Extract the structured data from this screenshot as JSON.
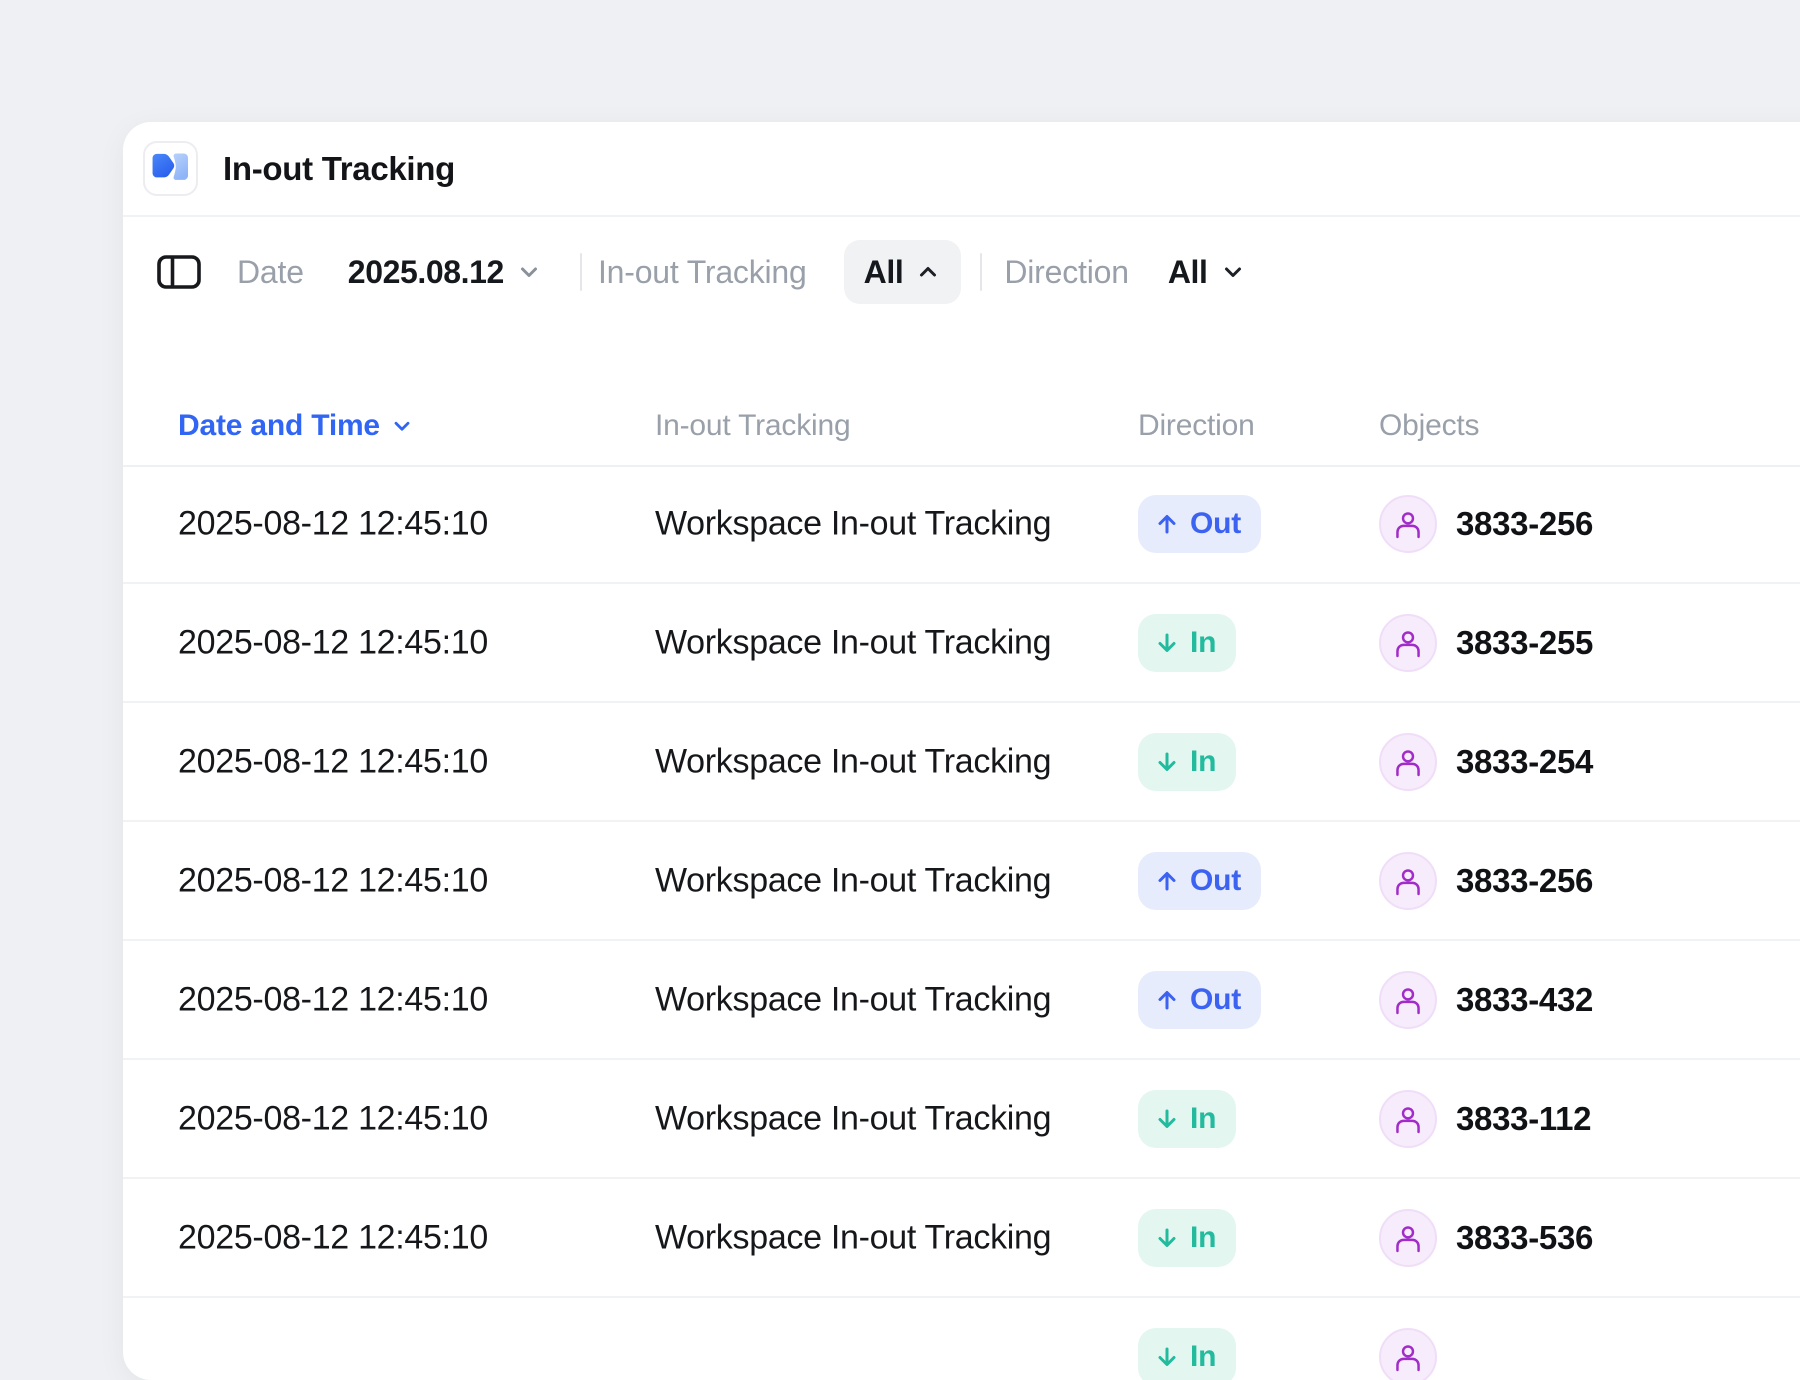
{
  "app": {
    "title": "In-out Tracking"
  },
  "toolbar": {
    "date_label": "Date",
    "date_value": "2025.08.12",
    "tracking_label": "In-out Tracking",
    "tracking_value": "All",
    "direction_label": "Direction",
    "direction_value": "All"
  },
  "table": {
    "headers": {
      "datetime": "Date and Time",
      "tracking": "In-out Tracking",
      "direction": "Direction",
      "objects": "Objects"
    },
    "direction_labels": {
      "in": "In",
      "out": "Out"
    },
    "rows": [
      {
        "datetime": "2025-08-12 12:45:10",
        "tracking": "Workspace In-out Tracking",
        "direction": "out",
        "object_id": "3833-256"
      },
      {
        "datetime": "2025-08-12 12:45:10",
        "tracking": "Workspace In-out Tracking",
        "direction": "in",
        "object_id": "3833-255"
      },
      {
        "datetime": "2025-08-12 12:45:10",
        "tracking": "Workspace In-out Tracking",
        "direction": "in",
        "object_id": "3833-254"
      },
      {
        "datetime": "2025-08-12 12:45:10",
        "tracking": "Workspace In-out Tracking",
        "direction": "out",
        "object_id": "3833-256"
      },
      {
        "datetime": "2025-08-12 12:45:10",
        "tracking": "Workspace In-out Tracking",
        "direction": "out",
        "object_id": "3833-432"
      },
      {
        "datetime": "2025-08-12 12:45:10",
        "tracking": "Workspace In-out Tracking",
        "direction": "in",
        "object_id": "3833-112"
      },
      {
        "datetime": "2025-08-12 12:45:10",
        "tracking": "Workspace In-out Tracking",
        "direction": "in",
        "object_id": "3833-536"
      },
      {
        "datetime": "",
        "tracking": "",
        "direction": "in",
        "object_id": ""
      }
    ]
  },
  "colors": {
    "page_background": "#eef0f3",
    "card_background": "#ffffff",
    "accent_blue": "#3165f3",
    "out_badge_bg": "#e7ecfc",
    "out_badge_text": "#3b62f1",
    "in_badge_bg": "#e3f6f0",
    "in_badge_text": "#23bb9e",
    "avatar_bg": "#f7ecfb",
    "avatar_glyph": "#a12cc8",
    "muted_text": "#99a0aa",
    "dark_text": "#15171a"
  },
  "icons": {
    "logo": "app-logo",
    "sidebar": "panel-left-icon",
    "sort": "chevron-down-icon",
    "out": "arrow-up-icon",
    "in": "arrow-down-icon",
    "object": "person-icon"
  }
}
